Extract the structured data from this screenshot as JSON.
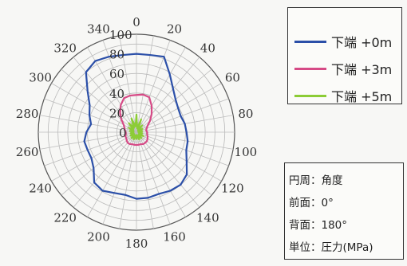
{
  "chart_data": {
    "type": "polar-line",
    "angle_ticks": [
      "0",
      "20",
      "40",
      "60",
      "80",
      "100",
      "120",
      "140",
      "160",
      "180",
      "200",
      "220",
      "240",
      "260",
      "280",
      "300",
      "320",
      "340"
    ],
    "radius_ticks": [
      "0",
      "20",
      "40",
      "60",
      "80",
      "100"
    ],
    "rlim": [
      0,
      100
    ],
    "angle_step_deg": 20,
    "grid": true,
    "legend_position": "right-top",
    "series": [
      {
        "name": "下端 +0m",
        "color": "#2b4fa8",
        "points": [
          [
            0,
            80
          ],
          [
            10,
            80
          ],
          [
            20,
            82
          ],
          [
            30,
            68
          ],
          [
            40,
            58
          ],
          [
            50,
            52
          ],
          [
            60,
            49
          ],
          [
            70,
            48
          ],
          [
            80,
            50
          ],
          [
            90,
            51
          ],
          [
            100,
            53
          ],
          [
            110,
            54
          ],
          [
            120,
            59
          ],
          [
            130,
            67
          ],
          [
            140,
            70
          ],
          [
            150,
            69
          ],
          [
            160,
            67
          ],
          [
            170,
            68
          ],
          [
            180,
            68
          ],
          [
            190,
            65
          ],
          [
            200,
            66
          ],
          [
            210,
            69
          ],
          [
            220,
            67
          ],
          [
            230,
            57
          ],
          [
            240,
            53
          ],
          [
            250,
            53
          ],
          [
            260,
            54
          ],
          [
            270,
            51
          ],
          [
            280,
            47
          ],
          [
            290,
            51
          ],
          [
            300,
            55
          ],
          [
            310,
            65
          ],
          [
            320,
            80
          ],
          [
            330,
            84
          ],
          [
            340,
            82
          ],
          [
            350,
            80
          ]
        ]
      },
      {
        "name": "下端 +3m",
        "color": "#d64a86",
        "points": [
          [
            0,
            38
          ],
          [
            10,
            39
          ],
          [
            20,
            38
          ],
          [
            30,
            31
          ],
          [
            40,
            24
          ],
          [
            50,
            18
          ],
          [
            60,
            13
          ],
          [
            70,
            11
          ],
          [
            80,
            10
          ],
          [
            90,
            11
          ],
          [
            100,
            11
          ],
          [
            110,
            12
          ],
          [
            120,
            13
          ],
          [
            130,
            14
          ],
          [
            140,
            14
          ],
          [
            150,
            14
          ],
          [
            160,
            13
          ],
          [
            170,
            13
          ],
          [
            180,
            13
          ],
          [
            190,
            13
          ],
          [
            200,
            13
          ],
          [
            210,
            14
          ],
          [
            220,
            14
          ],
          [
            230,
            13
          ],
          [
            240,
            12
          ],
          [
            250,
            12
          ],
          [
            260,
            11
          ],
          [
            270,
            11
          ],
          [
            280,
            12
          ],
          [
            290,
            13
          ],
          [
            300,
            15
          ],
          [
            310,
            20
          ],
          [
            320,
            26
          ],
          [
            330,
            32
          ],
          [
            340,
            37
          ],
          [
            350,
            38
          ]
        ]
      },
      {
        "name": "下端 +5m",
        "color": "#8ccc36",
        "points": [
          [
            0,
            18
          ],
          [
            10,
            4
          ],
          [
            20,
            14
          ],
          [
            30,
            3
          ],
          [
            40,
            9
          ],
          [
            50,
            2
          ],
          [
            60,
            7
          ],
          [
            70,
            3
          ],
          [
            80,
            6
          ],
          [
            90,
            2
          ],
          [
            100,
            6
          ],
          [
            110,
            3
          ],
          [
            120,
            8
          ],
          [
            130,
            3
          ],
          [
            140,
            8
          ],
          [
            150,
            4
          ],
          [
            160,
            8
          ],
          [
            170,
            3
          ],
          [
            180,
            7
          ],
          [
            190,
            3
          ],
          [
            200,
            8
          ],
          [
            210,
            4
          ],
          [
            220,
            8
          ],
          [
            230,
            3
          ],
          [
            240,
            7
          ],
          [
            250,
            3
          ],
          [
            260,
            6
          ],
          [
            270,
            3
          ],
          [
            280,
            7
          ],
          [
            290,
            3
          ],
          [
            300,
            9
          ],
          [
            310,
            4
          ],
          [
            320,
            12
          ],
          [
            330,
            5
          ],
          [
            340,
            15
          ],
          [
            350,
            6
          ]
        ]
      }
    ]
  },
  "info": {
    "line1": "円周：角度",
    "line2": "前面：0°",
    "line3": "背面：180°",
    "line4": "単位：圧力(MPa)"
  }
}
